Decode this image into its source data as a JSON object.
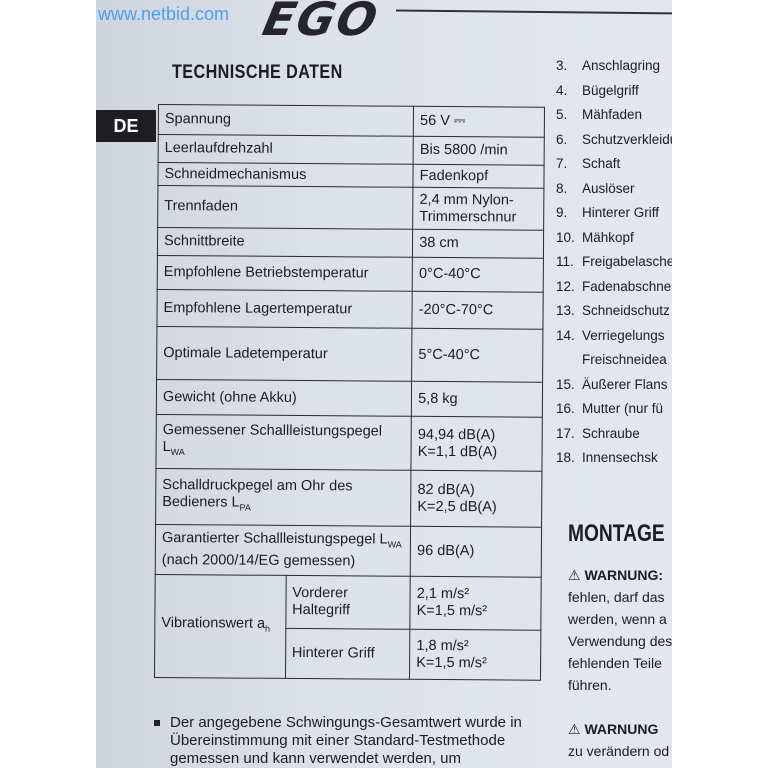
{
  "watermark": "www.netbid.com",
  "logo": "EGO",
  "title": "TECHNISCHE DATEN",
  "language_tab": "DE",
  "specs": [
    {
      "label": "Spannung",
      "value": "56 V ⎓"
    },
    {
      "label": "Leerlaufdrehzahl",
      "value": "Bis 5800 /min"
    },
    {
      "label": "Schneidmechanismus",
      "value": "Fadenkopf"
    },
    {
      "label": "Trennfaden",
      "value": "2,4 mm Nylon-Trimmerschnur"
    },
    {
      "label": "Schnittbreite",
      "value": "38 cm"
    },
    {
      "label": "Empfohlene Betriebstemperatur",
      "value": "0°C-40°C"
    },
    {
      "label": "Empfohlene Lagertemperatur",
      "value": "-20°C-70°C"
    },
    {
      "label": "Optimale Ladetemperatur",
      "value": "5°C-40°C"
    },
    {
      "label": "Gewicht (ohne Akku)",
      "value": "5,8 kg"
    },
    {
      "label": "Gemessener Schallleistungspegel",
      "sub": "WA",
      "label_prefix": "L",
      "value": "94,94 dB(A)",
      "value2": "K=1,1 dB(A)"
    },
    {
      "label": "Schalldruckpegel am Ohr des Bedieners L",
      "sub": "PA",
      "value": "82 dB(A)",
      "value2": "K=2,5 dB(A)"
    },
    {
      "label": "Garantierter Schallleistungspegel L",
      "sub": "WA",
      "label2": "(nach 2000/14/EG gemessen)",
      "value": "96 dB(A)"
    }
  ],
  "vibration": {
    "label": "Vibrationswert a",
    "sub": "h",
    "rows": [
      {
        "label": "Vorderer Haltegriff",
        "value": "2,1 m/s²",
        "value2": "K=1,5 m/s²"
      },
      {
        "label": "Hinterer Griff",
        "value": "1,8 m/s²",
        "value2": "K=1,5 m/s²"
      }
    ]
  },
  "parts": [
    {
      "n": "3.",
      "t": "Anschlagring"
    },
    {
      "n": "4.",
      "t": "Bügelgriff"
    },
    {
      "n": "5.",
      "t": "Mähfaden"
    },
    {
      "n": "6.",
      "t": "Schutzverkleidu"
    },
    {
      "n": "7.",
      "t": "Schaft"
    },
    {
      "n": "8.",
      "t": "Auslöser"
    },
    {
      "n": "9.",
      "t": "Hinterer Griff"
    },
    {
      "n": "10.",
      "t": "Mähkopf"
    },
    {
      "n": "11.",
      "t": "Freigabelasche"
    },
    {
      "n": "12.",
      "t": "Fadenabschne"
    },
    {
      "n": "13.",
      "t": "Schneidschutz"
    },
    {
      "n": "14.",
      "t": "Verriegelungs"
    },
    {
      "n": "",
      "t": "Freischneidea"
    },
    {
      "n": "15.",
      "t": "Äußerer Flans"
    },
    {
      "n": "16.",
      "t": "Mutter (nur fü"
    },
    {
      "n": "17.",
      "t": "Schraube"
    },
    {
      "n": "18.",
      "t": "Innensechsk"
    }
  ],
  "montage": {
    "title": "MONTAGE",
    "warning1_title": "WARNUNG:",
    "warning1_lines": [
      "fehlen, darf das",
      "werden, wenn a",
      "Verwendung des",
      "fehlenden Teile",
      "führen."
    ],
    "warning2_title": "WARNUNG",
    "warning2_lines": [
      "zu verändern od"
    ]
  },
  "note_lines": [
    "Der angegebene Schwingungs-Gesamtwert wurde in",
    "Übereinstimmung mit einer Standard-Testmethode",
    "gemessen und kann verwendet werden, um"
  ]
}
